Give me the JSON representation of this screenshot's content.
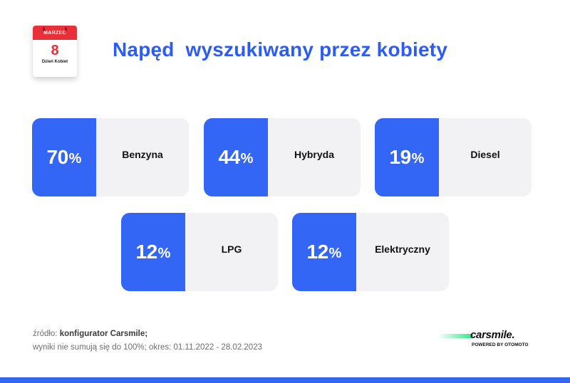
{
  "calendar": {
    "month": "MARZEC",
    "day": "8",
    "caption": "Dzień Kobiet"
  },
  "title": "Napęd  wyszukiwany przez kobiety",
  "cards": [
    {
      "value": "70",
      "unit": "%",
      "label": "Benzyna"
    },
    {
      "value": "44",
      "unit": "%",
      "label": "Hybryda"
    },
    {
      "value": "19",
      "unit": "%",
      "label": "Diesel"
    },
    {
      "value": "12",
      "unit": "%",
      "label": "LPG"
    },
    {
      "value": "12",
      "unit": "%",
      "label": "Elektryczny"
    }
  ],
  "source": {
    "prefix": "źródło:",
    "name": "konfigurator Carsmile;",
    "note": "wyniki nie sumują się do 100%; okres: 01.11.2022 - 28.02.2023"
  },
  "logo": {
    "word": "carsmile.",
    "sub": "POWERED BY OTOMOTO"
  },
  "colors": {
    "accent": "#3466f5",
    "card_bg": "#f2f2f4",
    "title": "#2d5cf2",
    "calendar_red": "#e8303a",
    "logo_green": "#2ee58a"
  }
}
